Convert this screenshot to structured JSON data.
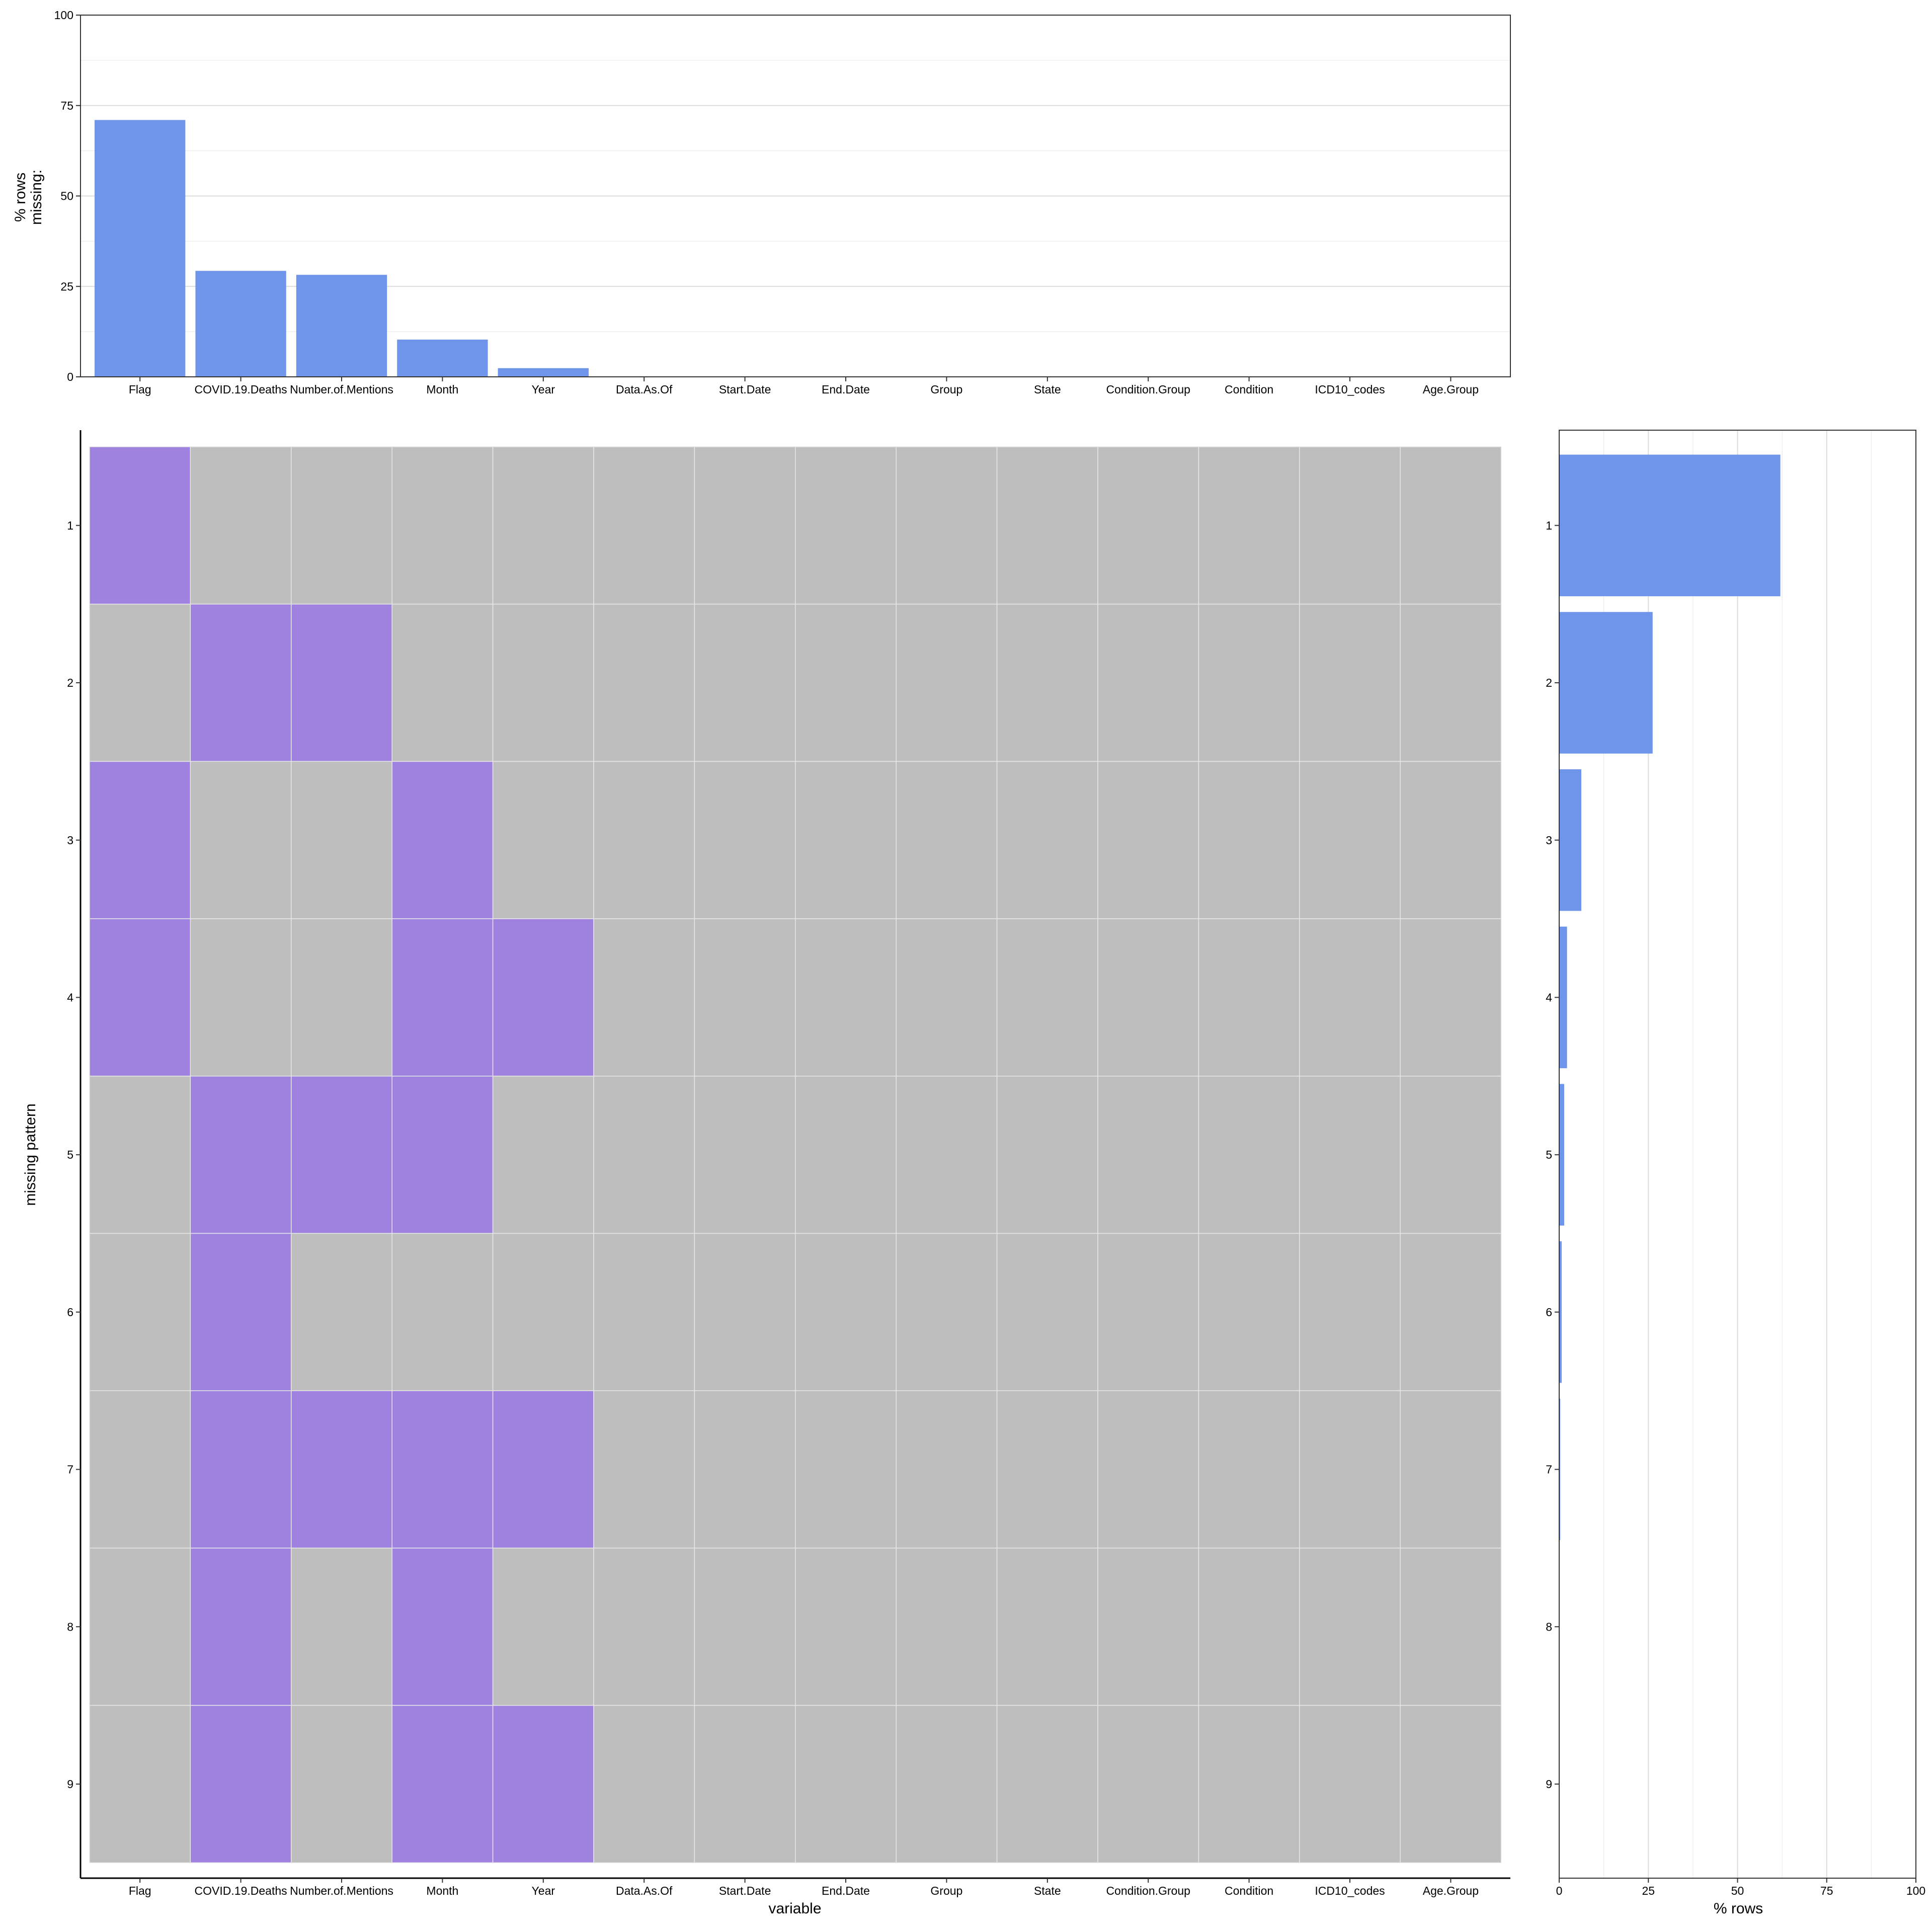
{
  "colors": {
    "bar": "#6e95ea",
    "missing": "#9f82e0",
    "present": "#bebebe",
    "grid": "#dcdcdc",
    "cell_line": "#e6e6e6",
    "axis": "#000000"
  },
  "chart_data": [
    {
      "type": "bar",
      "id": "top-missing-by-variable",
      "categories": [
        "Flag",
        "COVID.19.Deaths",
        "Number.of.Mentions",
        "Month",
        "Year",
        "Data.As.Of",
        "Start.Date",
        "End.Date",
        "Group",
        "State",
        "Condition.Group",
        "Condition",
        "ICD10_codes",
        "Age.Group"
      ],
      "values": [
        71,
        29.3,
        28.2,
        10.3,
        2.4,
        0,
        0,
        0,
        0,
        0,
        0,
        0,
        0,
        0
      ],
      "ylabel_lines": [
        "% rows",
        "missing:"
      ],
      "ylim": [
        0,
        100
      ],
      "yticks": [
        0,
        25,
        50,
        75,
        100
      ],
      "grid": true
    },
    {
      "type": "heatmap",
      "id": "missing-pattern-matrix",
      "xlabel": "variable",
      "ylabel": "missing pattern",
      "columns": [
        "Flag",
        "COVID.19.Deaths",
        "Number.of.Mentions",
        "Month",
        "Year",
        "Data.As.Of",
        "Start.Date",
        "End.Date",
        "Group",
        "State",
        "Condition.Group",
        "Condition",
        "ICD10_codes",
        "Age.Group"
      ],
      "rows": [
        "1",
        "2",
        "3",
        "4",
        "5",
        "6",
        "7",
        "8",
        "9"
      ],
      "missing": [
        [
          1,
          0,
          0,
          0,
          0,
          0,
          0,
          0,
          0,
          0,
          0,
          0,
          0,
          0
        ],
        [
          0,
          1,
          1,
          0,
          0,
          0,
          0,
          0,
          0,
          0,
          0,
          0,
          0,
          0
        ],
        [
          1,
          0,
          0,
          1,
          0,
          0,
          0,
          0,
          0,
          0,
          0,
          0,
          0,
          0
        ],
        [
          1,
          0,
          0,
          1,
          1,
          0,
          0,
          0,
          0,
          0,
          0,
          0,
          0,
          0
        ],
        [
          0,
          1,
          1,
          1,
          0,
          0,
          0,
          0,
          0,
          0,
          0,
          0,
          0,
          0
        ],
        [
          0,
          1,
          0,
          0,
          0,
          0,
          0,
          0,
          0,
          0,
          0,
          0,
          0,
          0
        ],
        [
          0,
          1,
          1,
          1,
          1,
          0,
          0,
          0,
          0,
          0,
          0,
          0,
          0,
          0
        ],
        [
          0,
          1,
          0,
          1,
          0,
          0,
          0,
          0,
          0,
          0,
          0,
          0,
          0,
          0
        ],
        [
          0,
          1,
          0,
          1,
          1,
          0,
          0,
          0,
          0,
          0,
          0,
          0,
          0,
          0
        ]
      ]
    },
    {
      "type": "bar",
      "orientation": "horizontal",
      "id": "right-rows-by-pattern",
      "categories": [
        "1",
        "2",
        "3",
        "4",
        "5",
        "6",
        "7",
        "8",
        "9"
      ],
      "values": [
        62,
        26.2,
        6.2,
        2.2,
        1.4,
        0.7,
        0.3,
        0.05,
        0.02
      ],
      "xlabel": "% rows",
      "xlim": [
        0,
        100
      ],
      "xticks": [
        0,
        25,
        50,
        75,
        100
      ],
      "grid": true
    }
  ]
}
